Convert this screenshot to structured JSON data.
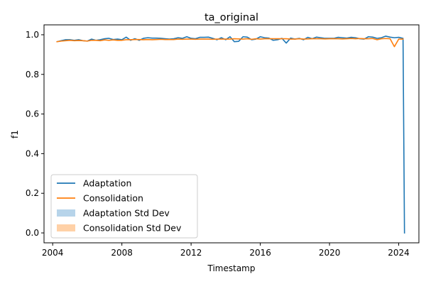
{
  "chart_data": {
    "type": "line",
    "title": "ta_original",
    "xlabel": "Timestamp",
    "ylabel": "f1",
    "xlim": [
      "2003-07-01",
      "2025-03-01"
    ],
    "ylim": [
      -0.05,
      1.05
    ],
    "xticks": [
      "2004",
      "2008",
      "2012",
      "2016",
      "2020",
      "2024"
    ],
    "yticks": [
      "0.0",
      "0.2",
      "0.4",
      "0.6",
      "0.8",
      "1.0"
    ],
    "grid": false,
    "legend_position": "lower-left",
    "series": [
      {
        "name": "Adaptation",
        "color": "#1f77b4",
        "x": [
          "2004-04-01",
          "2004-07-01",
          "2004-10-01",
          "2005-01-01",
          "2005-04-01",
          "2005-07-01",
          "2005-10-01",
          "2006-01-01",
          "2006-04-01",
          "2006-07-01",
          "2006-10-01",
          "2007-01-01",
          "2007-04-01",
          "2007-07-01",
          "2007-10-01",
          "2008-01-01",
          "2008-04-01",
          "2008-07-01",
          "2008-10-01",
          "2009-01-01",
          "2009-04-01",
          "2009-07-01",
          "2009-10-01",
          "2010-01-01",
          "2010-04-01",
          "2010-07-01",
          "2010-10-01",
          "2011-01-01",
          "2011-04-01",
          "2011-07-01",
          "2011-10-01",
          "2012-01-01",
          "2012-04-01",
          "2012-07-01",
          "2012-10-01",
          "2013-01-01",
          "2013-04-01",
          "2013-07-01",
          "2013-10-01",
          "2014-01-01",
          "2014-04-01",
          "2014-07-01",
          "2014-10-01",
          "2015-01-01",
          "2015-04-01",
          "2015-07-01",
          "2015-10-01",
          "2016-01-01",
          "2016-04-01",
          "2016-07-01",
          "2016-10-01",
          "2017-01-01",
          "2017-04-01",
          "2017-07-01",
          "2017-10-01",
          "2018-01-01",
          "2018-04-01",
          "2018-07-01",
          "2018-10-01",
          "2019-01-01",
          "2019-04-01",
          "2019-07-01",
          "2019-10-01",
          "2020-01-01",
          "2020-04-01",
          "2020-07-01",
          "2020-10-01",
          "2021-01-01",
          "2021-04-01",
          "2021-07-01",
          "2021-10-01",
          "2022-01-01",
          "2022-04-01",
          "2022-07-01",
          "2022-10-01",
          "2023-01-01",
          "2023-04-01",
          "2023-07-01",
          "2023-10-01",
          "2024-01-01",
          "2024-04-01",
          "2024-05-01"
        ],
        "y": [
          0.965,
          0.97,
          0.975,
          0.975,
          0.972,
          0.975,
          0.97,
          0.968,
          0.978,
          0.972,
          0.975,
          0.98,
          0.982,
          0.976,
          0.978,
          0.975,
          0.988,
          0.972,
          0.98,
          0.972,
          0.982,
          0.985,
          0.983,
          0.983,
          0.982,
          0.98,
          0.978,
          0.98,
          0.985,
          0.982,
          0.99,
          0.982,
          0.98,
          0.987,
          0.987,
          0.988,
          0.982,
          0.975,
          0.985,
          0.975,
          0.99,
          0.965,
          0.967,
          0.99,
          0.988,
          0.975,
          0.978,
          0.99,
          0.985,
          0.983,
          0.972,
          0.975,
          0.982,
          0.958,
          0.983,
          0.978,
          0.982,
          0.975,
          0.987,
          0.98,
          0.988,
          0.985,
          0.982,
          0.982,
          0.982,
          0.987,
          0.985,
          0.983,
          0.987,
          0.985,
          0.98,
          0.978,
          0.99,
          0.988,
          0.982,
          0.985,
          0.993,
          0.988,
          0.985,
          0.987,
          0.982,
          0.0
        ]
      },
      {
        "name": "Consolidation",
        "color": "#ff7f0e",
        "x": [
          "2004-04-01",
          "2004-07-01",
          "2004-10-01",
          "2005-01-01",
          "2005-04-01",
          "2005-07-01",
          "2005-10-01",
          "2006-01-01",
          "2006-04-01",
          "2006-07-01",
          "2006-10-01",
          "2007-01-01",
          "2007-04-01",
          "2007-07-01",
          "2007-10-01",
          "2008-01-01",
          "2008-04-01",
          "2008-07-01",
          "2008-10-01",
          "2009-01-01",
          "2009-04-01",
          "2009-07-01",
          "2009-10-01",
          "2010-01-01",
          "2010-04-01",
          "2010-07-01",
          "2010-10-01",
          "2011-01-01",
          "2011-04-01",
          "2011-07-01",
          "2011-10-01",
          "2012-01-01",
          "2012-04-01",
          "2012-07-01",
          "2012-10-01",
          "2013-01-01",
          "2013-04-01",
          "2013-07-01",
          "2013-10-01",
          "2014-01-01",
          "2014-04-01",
          "2014-07-01",
          "2014-10-01",
          "2015-01-01",
          "2015-04-01",
          "2015-07-01",
          "2015-10-01",
          "2016-01-01",
          "2016-04-01",
          "2016-07-01",
          "2016-10-01",
          "2017-01-01",
          "2017-04-01",
          "2017-07-01",
          "2017-10-01",
          "2018-01-01",
          "2018-04-01",
          "2018-07-01",
          "2018-10-01",
          "2019-01-01",
          "2019-04-01",
          "2019-07-01",
          "2019-10-01",
          "2020-01-01",
          "2020-04-01",
          "2020-07-01",
          "2020-10-01",
          "2021-01-01",
          "2021-04-01",
          "2021-07-01",
          "2021-10-01",
          "2022-01-01",
          "2022-04-01",
          "2022-07-01",
          "2022-10-01",
          "2023-01-01",
          "2023-04-01",
          "2023-07-01",
          "2023-10-01",
          "2024-01-01",
          "2024-04-01"
        ],
        "y": [
          0.965,
          0.968,
          0.97,
          0.972,
          0.97,
          0.971,
          0.97,
          0.968,
          0.972,
          0.972,
          0.97,
          0.974,
          0.972,
          0.974,
          0.972,
          0.972,
          0.975,
          0.975,
          0.976,
          0.976,
          0.975,
          0.976,
          0.975,
          0.976,
          0.977,
          0.976,
          0.976,
          0.976,
          0.978,
          0.977,
          0.978,
          0.978,
          0.977,
          0.978,
          0.978,
          0.978,
          0.977,
          0.978,
          0.978,
          0.978,
          0.978,
          0.98,
          0.979,
          0.978,
          0.98,
          0.977,
          0.98,
          0.978,
          0.98,
          0.98,
          0.98,
          0.98,
          0.98,
          0.98,
          0.978,
          0.978,
          0.98,
          0.978,
          0.979,
          0.98,
          0.98,
          0.98,
          0.979,
          0.98,
          0.98,
          0.98,
          0.979,
          0.98,
          0.981,
          0.98,
          0.981,
          0.98,
          0.98,
          0.981,
          0.975,
          0.98,
          0.981,
          0.98,
          0.94,
          0.978,
          0.978
        ]
      }
    ],
    "legend": [
      {
        "label": "Adaptation",
        "kind": "line",
        "color": "#1f77b4"
      },
      {
        "label": "Consolidation",
        "kind": "line",
        "color": "#ff7f0e"
      },
      {
        "label": "Adaptation Std Dev",
        "kind": "patch",
        "color": "#b7d4ea"
      },
      {
        "label": "Consolidation Std Dev",
        "kind": "patch",
        "color": "#ffd1a7"
      }
    ]
  }
}
